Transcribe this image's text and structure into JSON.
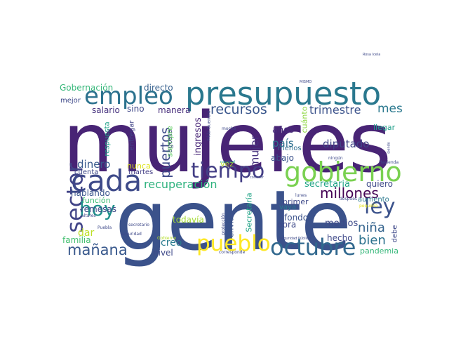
{
  "word_cloud": {
    "words": [
      {
        "text": "mujeres",
        "color": "#482475"
      },
      {
        "text": "gente",
        "color": "#3b528b"
      },
      {
        "text": "presupuesto",
        "color": "#2a788e"
      },
      {
        "text": "empleo",
        "color": "#2c728e"
      },
      {
        "text": "gobierno",
        "color": "#7ad151"
      },
      {
        "text": "cada",
        "color": "#3e4a89"
      },
      {
        "text": "tiempo",
        "color": "#433e85"
      },
      {
        "text": "octubre",
        "color": "#31688e"
      },
      {
        "text": "pueblo",
        "color": "#fde725"
      },
      {
        "text": "sector",
        "color": "#414487"
      },
      {
        "text": "ley",
        "color": "#3b528b"
      },
      {
        "text": "hoy",
        "color": "#21918c"
      },
      {
        "text": "mañana",
        "color": "#38588c"
      },
      {
        "text": "recursos",
        "color": "#39568c"
      },
      {
        "text": "millones",
        "color": "#440154"
      },
      {
        "text": "recuperación",
        "color": "#2db27d"
      },
      {
        "text": "trimestre",
        "color": "#3b528b"
      },
      {
        "text": "mes",
        "color": "#2a788e"
      },
      {
        "text": "puertos",
        "color": "#3e4a89"
      },
      {
        "text": "mujer",
        "color": "#46327e"
      },
      {
        "text": "niña",
        "color": "#33638d"
      },
      {
        "text": "bien",
        "color": "#2c728e"
      },
      {
        "text": "dinero",
        "color": "#38598c"
      },
      {
        "text": "país",
        "color": "#2d708e"
      },
      {
        "text": "diputado",
        "color": "#414487"
      },
      {
        "text": "ingresos",
        "color": "#482677"
      },
      {
        "text": "secretaria",
        "color": "#20a486"
      },
      {
        "text": "Gobernación",
        "color": "#35b779"
      },
      {
        "text": "directo",
        "color": "#355f8d"
      },
      {
        "text": "salario",
        "color": "#46327e"
      },
      {
        "text": "sino",
        "color": "#3f4788"
      },
      {
        "text": "manera",
        "color": "#472d7b"
      },
      {
        "text": "años",
        "color": "#472c7a"
      },
      {
        "text": "cuánto",
        "color": "#8fd744"
      },
      {
        "text": "llegar",
        "color": "#1f9e89"
      },
      {
        "text": "mejor",
        "color": "#3e4989"
      },
      {
        "text": "respuesta",
        "color": "#1fa188"
      },
      {
        "text": "entregar",
        "color": "#414487"
      },
      {
        "text": "agosto",
        "color": "#433e85"
      },
      {
        "text": "siempre",
        "color": "#5ec962"
      },
      {
        "text": "vez",
        "color": "#b5de2b"
      },
      {
        "text": "menos",
        "color": "#2e6e8e"
      },
      {
        "text": "abajo",
        "color": "#3b528b"
      },
      {
        "text": "cuenta",
        "color": "#3e4989"
      },
      {
        "text": "martes",
        "color": "#433e85"
      },
      {
        "text": "nunca",
        "color": "#dde318"
      },
      {
        "text": "hablando",
        "color": "#39568c"
      },
      {
        "text": "función",
        "color": "#3fbc73"
      },
      {
        "text": "remesas",
        "color": "#3e4a89"
      },
      {
        "text": "dar",
        "color": "#bddf26"
      },
      {
        "text": "familia",
        "color": "#44bf70"
      },
      {
        "text": "creo",
        "color": "#297b8e"
      },
      {
        "text": "todavía",
        "color": "#a5db36"
      },
      {
        "text": "nivel",
        "color": "#3e4989"
      },
      {
        "text": "envía",
        "color": "#3b528b"
      },
      {
        "text": "Secretaría",
        "color": "#20a386"
      },
      {
        "text": "medios",
        "color": "#3e4a89"
      },
      {
        "text": "hecho",
        "color": "#3e4989"
      },
      {
        "text": "fondo",
        "color": "#3b528b"
      },
      {
        "text": "obra",
        "color": "#3e4989"
      },
      {
        "text": "vaya",
        "color": "#2a788e"
      },
      {
        "text": "primer",
        "color": "#3e4989"
      },
      {
        "text": "quiero",
        "color": "#3e4989"
      },
      {
        "text": "aumento",
        "color": "#2a788e"
      },
      {
        "text": "debe",
        "color": "#3e4989"
      },
      {
        "text": "pandemia",
        "color": "#35b779"
      },
      {
        "text": "Frida Guerrera",
        "color": "#3e4989"
      },
      {
        "text": "moche",
        "color": "#3e4989"
      },
      {
        "text": "ningún",
        "color": "#3e4989"
      },
      {
        "text": "Hacienda",
        "color": "#3e4989"
      },
      {
        "text": "siendo",
        "color": "#3e4989"
      },
      {
        "text": "Rosa Icela",
        "color": "#3e4989"
      },
      {
        "text": "conocer",
        "color": "#3e4989"
      },
      {
        "text": "nacional",
        "color": "#1f9e89"
      },
      {
        "text": "lunes",
        "color": "#3e4989"
      },
      {
        "text": "después",
        "color": "#3e4989"
      },
      {
        "text": "pequeña",
        "color": "#e5e419"
      },
      {
        "text": "protección",
        "color": "#3e4989"
      },
      {
        "text": "secretario",
        "color": "#3e4989"
      },
      {
        "text": "Puebla",
        "color": "#3e4989"
      },
      {
        "text": "altares",
        "color": "#3e4989"
      },
      {
        "text": "seguridad",
        "color": "#3e4989"
      },
      {
        "text": "Gobierno",
        "color": "#b5de2b"
      },
      {
        "text": "Seguridad Pública",
        "color": "#3e4989"
      },
      {
        "text": "corresponde",
        "color": "#3e4989"
      },
      {
        "text": "MISMO",
        "color": "#3e4989"
      }
    ]
  }
}
